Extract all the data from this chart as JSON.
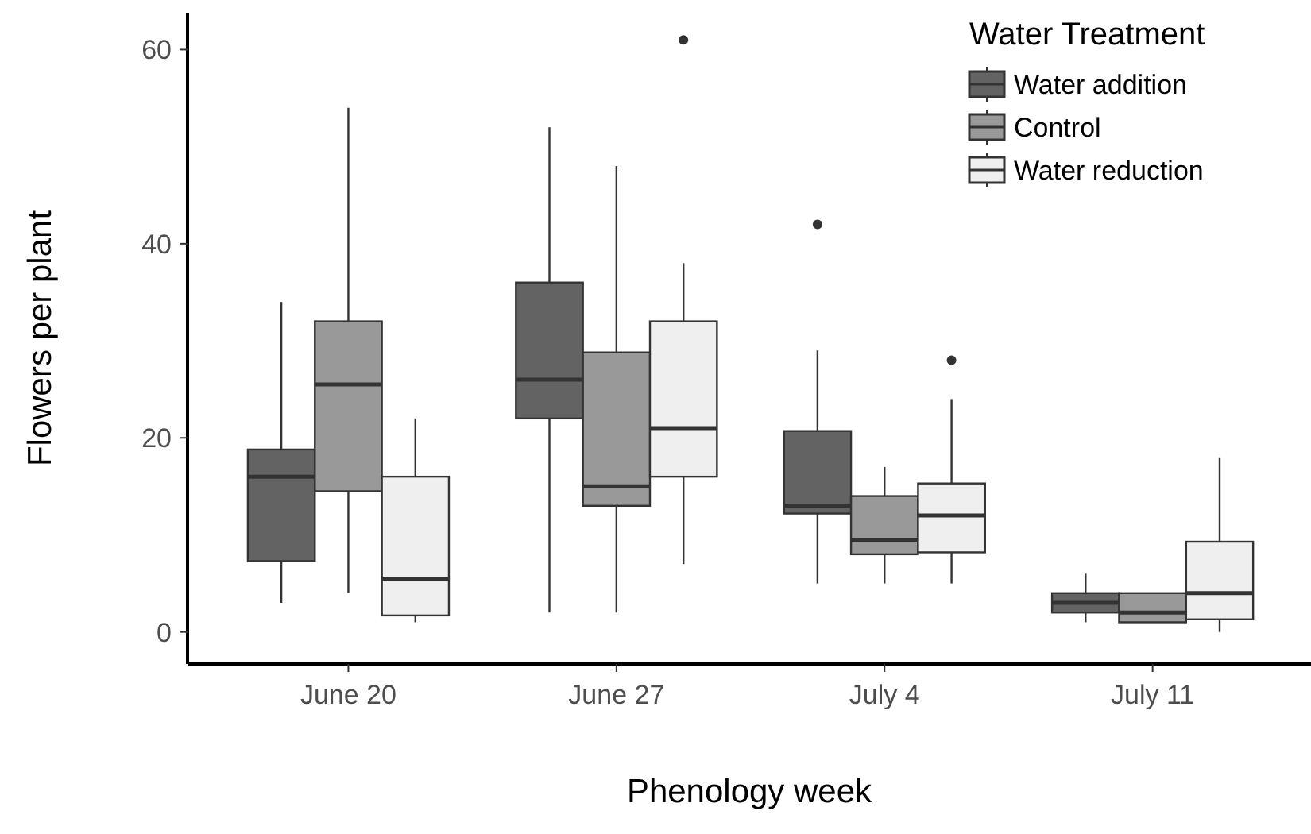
{
  "chart_data": {
    "type": "box",
    "xlabel": "Phenology week",
    "ylabel": "Flowers per plant",
    "legend_title": "Water Treatment",
    "legend": "top right",
    "grid": false,
    "categories": [
      "June 20",
      "June 27",
      "July 4",
      "July 11"
    ],
    "ylim": [
      -3.3,
      63.8
    ],
    "yticks": [
      0,
      20,
      40,
      60
    ],
    "series": [
      {
        "name": "Water addition",
        "color": "#636363",
        "boxes": [
          {
            "low": 3,
            "q1": 7.3,
            "median": 16,
            "q3": 18.8,
            "high": 34
          },
          {
            "low": 2,
            "q1": 22,
            "median": 26,
            "q3": 36,
            "high": 52
          },
          {
            "low": 5,
            "q1": 12.2,
            "median": 13,
            "q3": 20.7,
            "high": 29,
            "outliers": [
              42
            ]
          },
          {
            "low": 1,
            "q1": 2,
            "median": 3,
            "q3": 4,
            "high": 6
          }
        ]
      },
      {
        "name": "Control",
        "color": "#999999",
        "boxes": [
          {
            "low": 4,
            "q1": 14.5,
            "median": 25.5,
            "q3": 32,
            "high": 54
          },
          {
            "low": 2,
            "q1": 13,
            "median": 15,
            "q3": 28.8,
            "high": 48
          },
          {
            "low": 5,
            "q1": 8,
            "median": 9.5,
            "q3": 14,
            "high": 17
          },
          {
            "low": 1,
            "q1": 1,
            "median": 2,
            "q3": 4,
            "high": 4
          }
        ]
      },
      {
        "name": "Water reduction",
        "color": "#efefef",
        "boxes": [
          {
            "low": 1,
            "q1": 1.7,
            "median": 5.5,
            "q3": 16,
            "high": 22
          },
          {
            "low": 7,
            "q1": 16,
            "median": 21,
            "q3": 32,
            "high": 38,
            "outliers": [
              61
            ]
          },
          {
            "low": 5,
            "q1": 8.2,
            "median": 12,
            "q3": 15.3,
            "high": 24,
            "outliers": [
              28
            ]
          },
          {
            "low": 0,
            "q1": 1.3,
            "median": 4,
            "q3": 9.3,
            "high": 18
          }
        ]
      }
    ]
  }
}
